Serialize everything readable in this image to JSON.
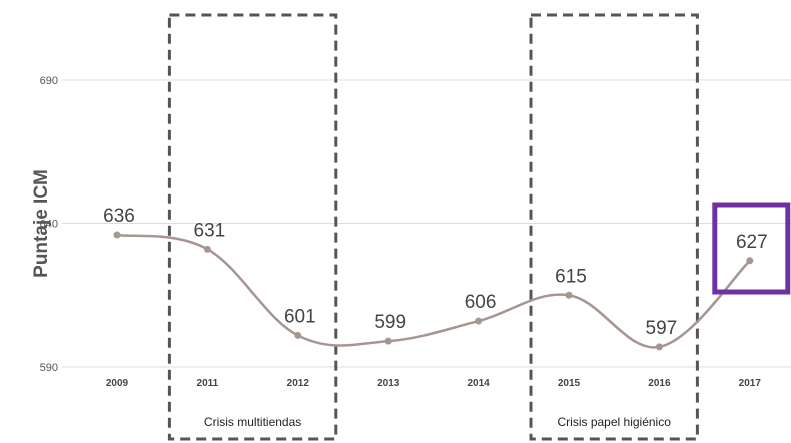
{
  "chart_data": {
    "type": "line",
    "ylabel": "Puntaje ICM",
    "xlabel": "",
    "categories": [
      "2009",
      "2011",
      "2012",
      "2013",
      "2014",
      "2015",
      "2016",
      "2017"
    ],
    "values": [
      636,
      631,
      601,
      599,
      606,
      615,
      597,
      627
    ],
    "data_labels": [
      "636",
      "631",
      "601",
      "599",
      "606",
      "615",
      "597",
      "627"
    ],
    "y_ticks": [
      "690",
      "640",
      "590"
    ],
    "ylim": [
      590,
      690
    ],
    "grid": true,
    "highlight_category": "2017",
    "annotations": [
      {
        "label": "Crisis multitiendas",
        "categories": [
          "2011",
          "2012"
        ]
      },
      {
        "label": "Crisis papel higiénico",
        "categories": [
          "2015",
          "2016"
        ]
      }
    ],
    "colors": {
      "line": "#a89490",
      "grid": "#dddddd",
      "highlight": "#7030a0",
      "annotation_border": "#555555"
    }
  }
}
